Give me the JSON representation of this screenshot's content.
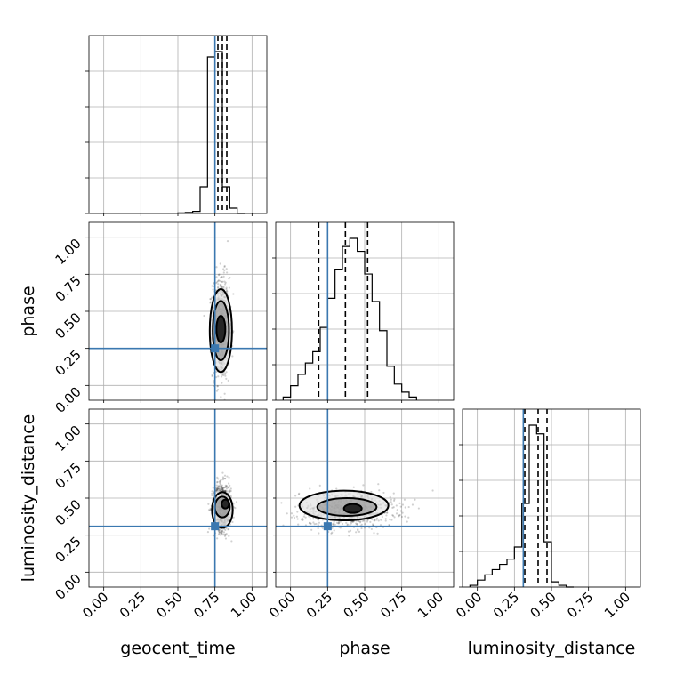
{
  "chart_data": {
    "type": "corner",
    "parameters": [
      "geocent_time",
      "phase",
      "luminosity_distance"
    ],
    "tick_values": [
      0.0,
      0.25,
      0.5,
      0.75,
      1.0
    ],
    "tick_labels": [
      "0.00",
      "0.25",
      "0.50",
      "0.75",
      "1.00"
    ],
    "range": [
      -0.1,
      1.1
    ],
    "grid": true,
    "truth_color": "#3b78b0",
    "truths": {
      "geocent_time": 0.75,
      "phase": 0.25,
      "luminosity_distance": 0.31
    },
    "marginals": [
      {
        "parameter": "geocent_time",
        "bin_edges": [
          0.5,
          0.55,
          0.6,
          0.65,
          0.7,
          0.75,
          0.8,
          0.85,
          0.9,
          0.95
        ],
        "counts": [
          0.003,
          0.006,
          0.012,
          0.15,
          0.88,
          0.91,
          0.15,
          0.03,
          0.0
        ],
        "quantiles": [
          0.77,
          0.8,
          0.83
        ]
      },
      {
        "parameter": "phase",
        "bin_edges": [
          -0.05,
          0.0,
          0.05,
          0.1,
          0.15,
          0.2,
          0.25,
          0.3,
          0.35,
          0.4,
          0.45,
          0.5,
          0.55,
          0.6,
          0.65,
          0.7,
          0.75,
          0.8,
          0.85
        ],
        "counts": [
          0.02,
          0.09,
          0.16,
          0.23,
          0.3,
          0.45,
          0.63,
          0.81,
          0.95,
          1.0,
          0.92,
          0.78,
          0.61,
          0.43,
          0.21,
          0.1,
          0.05,
          0.02
        ],
        "quantiles": [
          0.19,
          0.37,
          0.52
        ]
      },
      {
        "parameter": "luminosity_distance",
        "bin_edges": [
          -0.05,
          0.0,
          0.05,
          0.1,
          0.15,
          0.2,
          0.25,
          0.3,
          0.35,
          0.4,
          0.45,
          0.5,
          0.55,
          0.6,
          0.65
        ],
        "counts": [
          0.01,
          0.04,
          0.07,
          0.1,
          0.13,
          0.16,
          0.23,
          0.48,
          0.93,
          0.88,
          0.26,
          0.03,
          0.01,
          0.0
        ],
        "quantiles": [
          0.32,
          0.41,
          0.47
        ]
      }
    ],
    "joints": [
      {
        "x": "geocent_time",
        "y": "phase",
        "center": [
          0.79,
          0.39
        ],
        "spread": [
          0.028,
          0.17
        ],
        "contours": [
          {
            "cx": 0.79,
            "cy": 0.38,
            "rx": 0.03,
            "ry": 0.09
          },
          {
            "cx": 0.79,
            "cy": 0.37,
            "rx": 0.055,
            "ry": 0.2
          },
          {
            "cx": 0.79,
            "cy": 0.37,
            "rx": 0.075,
            "ry": 0.28
          }
        ]
      },
      {
        "x": "geocent_time",
        "y": "luminosity_distance",
        "center": [
          0.8,
          0.44
        ],
        "spread": [
          0.03,
          0.08
        ],
        "contours": [
          {
            "cx": 0.82,
            "cy": 0.46,
            "rx": 0.025,
            "ry": 0.03
          },
          {
            "cx": 0.8,
            "cy": 0.44,
            "rx": 0.05,
            "ry": 0.07
          },
          {
            "cx": 0.8,
            "cy": 0.42,
            "rx": 0.07,
            "ry": 0.12
          }
        ]
      },
      {
        "x": "phase",
        "y": "luminosity_distance",
        "center": [
          0.38,
          0.42
        ],
        "spread": [
          0.16,
          0.06
        ],
        "contours": [
          {
            "cx": 0.42,
            "cy": 0.43,
            "rx": 0.06,
            "ry": 0.03
          },
          {
            "cx": 0.38,
            "cy": 0.44,
            "rx": 0.2,
            "ry": 0.06
          },
          {
            "cx": 0.36,
            "cy": 0.45,
            "rx": 0.3,
            "ry": 0.1
          }
        ]
      }
    ]
  }
}
